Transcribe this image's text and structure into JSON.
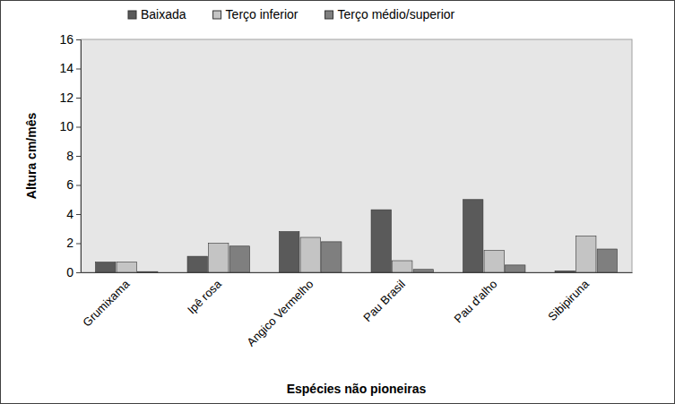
{
  "chart_data": {
    "type": "bar",
    "x_label": "Espécies não pioneiras",
    "y_label": "Altura cm/mês",
    "categories": [
      "Grumixama",
      "Ipê rosa",
      "Angico Vermelho",
      "Pau Brasil",
      "Pau d'alho",
      "Sibipiruna"
    ],
    "series": [
      {
        "name": "Baixada",
        "color": "#5a5a5a",
        "values": [
          0.7,
          1.1,
          2.8,
          4.3,
          5.0,
          0.1
        ]
      },
      {
        "name": "Terço inferior",
        "color": "#c4c4c4",
        "values": [
          0.7,
          2.0,
          2.4,
          0.8,
          1.5,
          2.5
        ]
      },
      {
        "name": "Terço médio/superior",
        "color": "#7f7f7f",
        "values": [
          0.05,
          1.8,
          2.1,
          0.2,
          0.5,
          1.6
        ]
      }
    ],
    "ylim": [
      0,
      16
    ],
    "yticks": [
      0,
      2,
      4,
      6,
      8,
      10,
      12,
      14,
      16
    ],
    "grid": false,
    "legend": "top"
  }
}
